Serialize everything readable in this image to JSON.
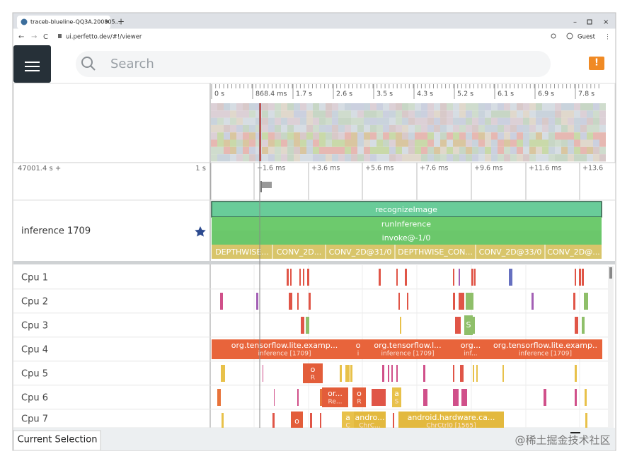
{
  "browser": {
    "tab_title": "traceb-blueline-QQ3A.200805...",
    "url": "ui.perfetto.dev/#!/viewer",
    "profile": "Guest"
  },
  "toolbar": {
    "search_placeholder": "Search"
  },
  "overview": {
    "ticks": [
      "0 s",
      "868.4 ms",
      "1.7 s",
      "2.6 s",
      "3.5 s",
      "4.3 s",
      "5.2 s",
      "6.1 s",
      "6.9 s",
      "7.8 s"
    ]
  },
  "timeline": {
    "offset": "47001.4 s +",
    "scale": "1 s",
    "ticks": [
      "+1.6 ms",
      "+3.6 ms",
      "+5.6 ms",
      "+7.6 ms",
      "+9.6 ms",
      "+11.6 ms",
      "+13.6"
    ]
  },
  "process_track": {
    "name": "inference 1709",
    "slices": [
      "recognizeImage",
      "runInference",
      "invoke@-1/0"
    ],
    "ops": [
      "DEPTHWISE...",
      "CONV_2D...",
      "CONV_2D@31/0",
      "DEPTHWISE_CON...",
      "CONV_2D@33/0",
      "CONV_2D@..."
    ]
  },
  "cpu_tracks": [
    {
      "name": "Cpu 1",
      "slices": []
    },
    {
      "name": "Cpu 2",
      "slices": []
    },
    {
      "name": "Cpu 3",
      "slices": [
        {
          "title": "S"
        }
      ]
    },
    {
      "name": "Cpu 4",
      "slices": [
        {
          "title": "org.tensorflow.lite.examp...",
          "subtitle": "inference [1709]"
        },
        {
          "title": "o",
          "subtitle": "i"
        },
        {
          "title": "org.tensorflow.l...",
          "subtitle": "inference [1709]"
        },
        {
          "title": "org...",
          "subtitle": "inf..."
        },
        {
          "title": "org.tensorflow.lite.examp..",
          "subtitle": "inference [1709]"
        }
      ]
    },
    {
      "name": "Cpu 5",
      "slices": [
        {
          "title": "o",
          "subtitle": "R"
        }
      ]
    },
    {
      "name": "Cpu 6",
      "slices": [
        {
          "title": "or...",
          "subtitle": "Re..."
        },
        {
          "title": "o",
          "subtitle": "R"
        },
        {
          "title": "a",
          "subtitle": "S"
        }
      ]
    },
    {
      "name": "Cpu 7",
      "slices": [
        {
          "title": "o"
        },
        {
          "title": "a",
          "subtitle": "C"
        },
        {
          "title": "andro...",
          "subtitle": "ChrC..."
        },
        {
          "title": "android.hardware.ca...",
          "subtitle": "ChrCtrl0 [1565]"
        }
      ]
    }
  ],
  "bottom_panel": {
    "tab": "Current Selection"
  },
  "watermark": "@稀土掘金技术社区"
}
